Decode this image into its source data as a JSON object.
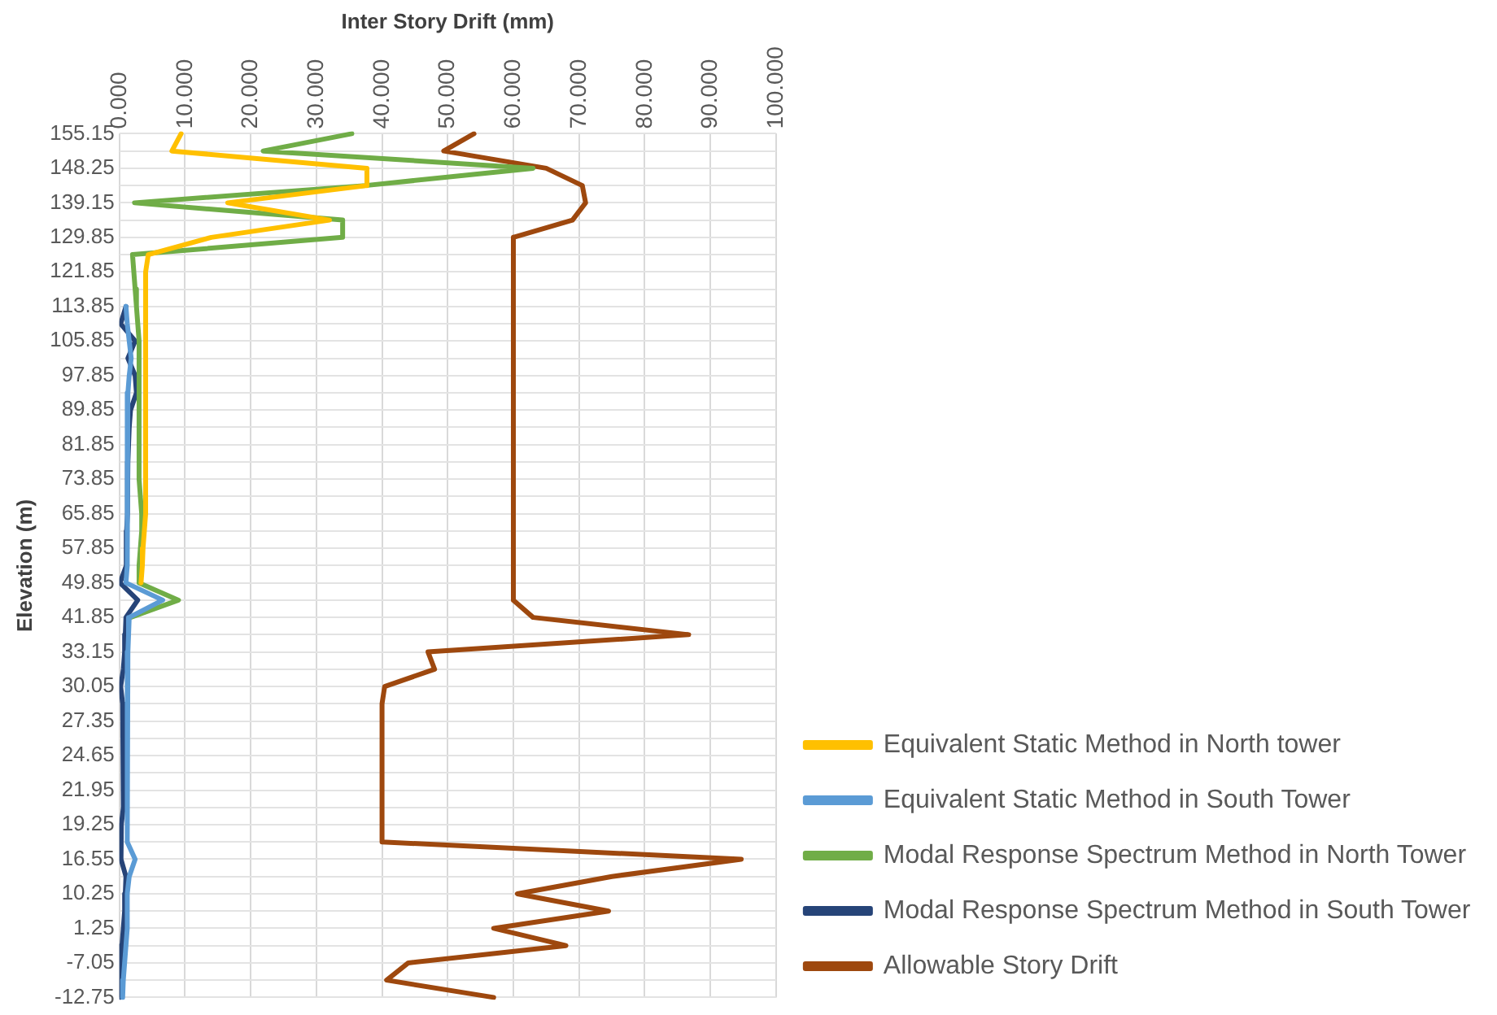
{
  "chart_data": {
    "type": "line",
    "orientation": "horizontal",
    "xlabel": "Inter Story Drift (mm)",
    "ylabel": "Elevation (m)",
    "categories": [
      "155.15",
      null,
      "148.25",
      null,
      "139.15",
      null,
      "129.85",
      null,
      "121.85",
      null,
      "113.85",
      null,
      "105.85",
      null,
      "97.85",
      null,
      "89.85",
      null,
      "81.85",
      null,
      "73.85",
      null,
      "65.85",
      null,
      "57.85",
      null,
      "49.85",
      null,
      "41.85",
      null,
      "33.15",
      null,
      "30.05",
      null,
      "27.35",
      null,
      "24.65",
      null,
      "21.95",
      null,
      "19.25",
      null,
      "16.55",
      null,
      "10.25",
      null,
      "1.25",
      null,
      "-7.05",
      null,
      "-12.75"
    ],
    "xlim": [
      0,
      100
    ],
    "xticks": [
      {
        "value": 0,
        "label": "0.000"
      },
      {
        "value": 10,
        "label": "10.000"
      },
      {
        "value": 20,
        "label": "20.000"
      },
      {
        "value": 30,
        "label": "30.000"
      },
      {
        "value": 40,
        "label": "40.000"
      },
      {
        "value": 50,
        "label": "50.000"
      },
      {
        "value": 60,
        "label": "60.000"
      },
      {
        "value": 70,
        "label": "70.000"
      },
      {
        "value": 80,
        "label": "80.000"
      },
      {
        "value": 90,
        "label": "90.000"
      },
      {
        "value": 100,
        "label": "100.000"
      }
    ],
    "grid": true,
    "legend": "right",
    "marker": "none",
    "line_style": "solid",
    "series": [
      {
        "name": "Equivalent Static Method in North tower",
        "color": "#ffc000",
        "values": [
          9.4,
          8,
          37.7,
          37.7,
          16.5,
          32,
          14,
          4.4,
          4,
          4,
          4,
          4,
          4,
          4,
          4,
          4,
          4,
          4,
          4,
          4,
          4,
          4,
          4,
          3.8,
          3.6,
          3.5,
          3.3,
          null,
          null,
          null,
          null,
          null,
          null,
          null,
          null,
          null,
          null,
          null,
          null,
          null,
          null,
          null,
          null,
          null,
          null,
          null,
          null,
          null,
          null,
          null,
          null
        ]
      },
      {
        "name": "Equivalent Static Method in South Tower",
        "color": "#5b9bd5",
        "values": [
          null,
          null,
          null,
          null,
          null,
          null,
          null,
          null,
          null,
          null,
          1.0,
          1.2,
          1.5,
          1.8,
          1.5,
          1.3,
          1.2,
          1.2,
          1.2,
          1.2,
          1.2,
          1.2,
          1.2,
          1.2,
          1.2,
          1.2,
          1.0,
          6.6,
          1.5,
          1.4,
          1.3,
          1.2,
          1.2,
          1.2,
          1.2,
          1.2,
          1.2,
          1.2,
          1.2,
          1.2,
          1.2,
          1.2,
          2.4,
          1.5,
          1.2,
          1.2,
          1.2,
          1.0,
          0.8,
          0.6,
          0.5
        ]
      },
      {
        "name": "Modal Response Spectrum Method in North Tower",
        "color": "#70ad47",
        "values": [
          35.4,
          21.9,
          63,
          37.5,
          2.3,
          34,
          34,
          2,
          2.2,
          2.4,
          2.6,
          2.8,
          3,
          3,
          3,
          3,
          3,
          3,
          3,
          3,
          3,
          3.2,
          3.4,
          3.4,
          3.2,
          3,
          3,
          9,
          1.7,
          null,
          null,
          null,
          null,
          null,
          null,
          null,
          null,
          null,
          null,
          null,
          null,
          null,
          null,
          null,
          null,
          null,
          null,
          null,
          null,
          null,
          null
        ]
      },
      {
        "name": "Modal Response Spectrum Method in South Tower",
        "color": "#264478",
        "values": [
          null,
          null,
          null,
          null,
          null,
          null,
          null,
          null,
          null,
          null,
          1,
          0.2,
          2.4,
          1.3,
          2.4,
          2.6,
          1.7,
          1.5,
          1.4,
          1.3,
          1.3,
          1.2,
          1.2,
          1.1,
          1.1,
          1.0,
          0.1,
          2.8,
          1.0,
          0.9,
          0.8,
          0.6,
          0.2,
          0.5,
          0.6,
          0.6,
          0.6,
          0.6,
          0.6,
          0.6,
          0.3,
          0.2,
          0.3,
          1.0,
          0.9,
          0.8,
          0.6,
          0.4,
          0.3,
          0.2,
          0.1
        ]
      },
      {
        "name": "Allowable Story Drift",
        "color": "#9e480e",
        "values": [
          54,
          49.4,
          65,
          70.5,
          71,
          69,
          60,
          60,
          60,
          60,
          60,
          60,
          60,
          60,
          60,
          60,
          60,
          60,
          60,
          60,
          60,
          60,
          60,
          60,
          60,
          60,
          60,
          60,
          63,
          86.7,
          47,
          48,
          40.4,
          40,
          40,
          40,
          40,
          40,
          40,
          40,
          40,
          40,
          94.7,
          75,
          60.6,
          74.5,
          57,
          68,
          44,
          40.7,
          57
        ]
      }
    ]
  }
}
